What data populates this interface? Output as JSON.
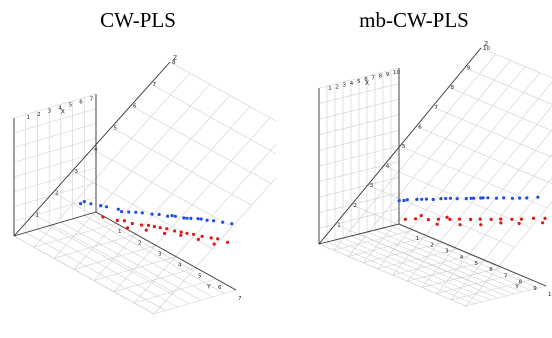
{
  "colors": {
    "blue": "#1f4fe0",
    "red": "#e0161a",
    "grid": "#cfcfcf",
    "axis": "#333333"
  },
  "chart_data": [
    {
      "type": "scatter",
      "title": "CW-PLS",
      "axes": {
        "x_label": "X",
        "y_label": "Y",
        "z_label": "Z",
        "y_ticks": [
          "1",
          "2",
          "3",
          "4",
          "5",
          "6",
          "7"
        ],
        "z_ticks": [
          "1",
          "2",
          "3",
          "4",
          "5",
          "6",
          "7",
          "8"
        ],
        "x_ticks": [
          "1",
          "2",
          "3",
          "4",
          "5",
          "6",
          "7"
        ]
      },
      "grid": true,
      "series": [
        {
          "color": "blue",
          "points": [
            [
              2,
              1,
              3.2
            ],
            [
              1.9,
              1.3,
              3.3
            ],
            [
              2.6,
              1.8,
              3.4
            ],
            [
              2.9,
              2.4,
              3.5
            ],
            [
              3.2,
              2.6,
              3.6
            ],
            [
              3.7,
              3.0,
              3.8
            ],
            [
              4.1,
              3.3,
              3.9
            ],
            [
              4.4,
              3.5,
              4.0
            ],
            [
              4.6,
              3.8,
              4.1
            ],
            [
              5.0,
              4.0,
              4.2
            ],
            [
              5.2,
              4.3,
              4.3
            ],
            [
              5.5,
              4.5,
              4.4
            ],
            [
              5.8,
              4.7,
              4.5
            ],
            [
              6.1,
              5.0,
              4.6
            ],
            [
              6.3,
              5.2,
              4.7
            ],
            [
              3.0,
              2.2,
              3.5
            ],
            [
              3.5,
              2.8,
              3.7
            ],
            [
              4.8,
              3.9,
              4.2
            ],
            [
              5.3,
              4.4,
              4.35
            ],
            [
              5.9,
              4.8,
              4.55
            ],
            [
              6.6,
              5.5,
              4.8
            ],
            [
              6.9,
              5.8,
              4.9
            ],
            [
              1.6,
              1.0,
              3.1
            ],
            [
              2.4,
              1.6,
              3.35
            ]
          ]
        },
        {
          "color": "red",
          "points": [
            [
              2.5,
              2.0,
              2.8
            ],
            [
              3.0,
              2.5,
              2.9
            ],
            [
              3.3,
              2.7,
              3.0
            ],
            [
              3.6,
              3.0,
              3.0
            ],
            [
              3.9,
              3.3,
              3.1
            ],
            [
              4.2,
              3.5,
              3.2
            ],
            [
              4.4,
              3.7,
              3.25
            ],
            [
              4.6,
              3.9,
              3.3
            ],
            [
              4.9,
              4.1,
              3.35
            ],
            [
              5.1,
              4.4,
              3.4
            ],
            [
              5.4,
              4.6,
              3.45
            ],
            [
              5.6,
              4.8,
              3.5
            ],
            [
              5.9,
              5.0,
              3.55
            ],
            [
              6.2,
              5.3,
              3.6
            ],
            [
              6.5,
              5.6,
              3.7
            ],
            [
              6.8,
              5.8,
              3.75
            ],
            [
              7.0,
              6.2,
              3.8
            ],
            [
              3.4,
              3.0,
              2.7
            ],
            [
              4.0,
              3.6,
              2.95
            ],
            [
              4.7,
              4.2,
              3.1
            ],
            [
              5.3,
              4.7,
              3.3
            ],
            [
              6.0,
              5.3,
              3.4
            ],
            [
              6.4,
              5.9,
              3.5
            ]
          ]
        }
      ]
    },
    {
      "type": "scatter",
      "title": "mb-CW-PLS",
      "axes": {
        "x_label": "X",
        "y_label": "Y",
        "z_label": "Z",
        "y_ticks": [
          "1",
          "2",
          "3",
          "4",
          "5",
          "6",
          "7",
          "8",
          "9",
          "10"
        ],
        "z_ticks": [
          "1",
          "2",
          "3",
          "4",
          "5",
          "6",
          "7",
          "8",
          "9",
          "10"
        ],
        "x_ticks": [
          "1",
          "2",
          "3",
          "4",
          "5",
          "6",
          "7",
          "8",
          "9",
          "10"
        ]
      },
      "grid": true,
      "series": [
        {
          "color": "blue",
          "points": [
            [
              2.5,
              1.8,
              4.4
            ],
            [
              2.9,
              2.1,
              4.6
            ],
            [
              3.3,
              2.5,
              4.8
            ],
            [
              3.7,
              2.9,
              5.0
            ],
            [
              4.0,
              3.2,
              5.1
            ],
            [
              4.3,
              3.5,
              5.3
            ],
            [
              4.7,
              3.9,
              5.5
            ],
            [
              5.0,
              4.2,
              5.6
            ],
            [
              5.3,
              4.6,
              5.8
            ],
            [
              5.6,
              4.9,
              5.95
            ],
            [
              5.9,
              5.2,
              6.1
            ],
            [
              6.2,
              5.5,
              6.25
            ],
            [
              6.5,
              5.9,
              6.4
            ],
            [
              6.8,
              6.2,
              6.55
            ],
            [
              7.1,
              6.6,
              6.7
            ],
            [
              7.4,
              6.9,
              6.85
            ],
            [
              7.7,
              7.2,
              7.0
            ],
            [
              2.7,
              2.0,
              4.5
            ],
            [
              3.5,
              2.7,
              4.9
            ],
            [
              4.5,
              3.7,
              5.4
            ],
            [
              5.5,
              4.8,
              5.9
            ],
            [
              6.0,
              5.3,
              6.15
            ],
            [
              7.9,
              7.7,
              7.3
            ]
          ]
        },
        {
          "color": "red",
          "points": [
            [
              3.0,
              2.8,
              3.3
            ],
            [
              3.5,
              3.2,
              3.5
            ],
            [
              4.0,
              3.8,
              3.7
            ],
            [
              4.5,
              4.2,
              3.9
            ],
            [
              5.0,
              4.7,
              4.1
            ],
            [
              5.4,
              5.1,
              4.3
            ],
            [
              5.8,
              5.6,
              4.5
            ],
            [
              6.2,
              6.0,
              4.7
            ],
            [
              6.6,
              6.5,
              4.9
            ],
            [
              7.0,
              6.9,
              5.1
            ],
            [
              7.4,
              7.4,
              5.3
            ],
            [
              7.8,
              7.8,
              5.5
            ],
            [
              8.2,
              8.3,
              5.8
            ],
            [
              8.7,
              8.8,
              6.0
            ],
            [
              9.1,
              9.3,
              6.2
            ],
            [
              9.6,
              9.8,
              6.6
            ],
            [
              4.2,
              4.4,
              3.6
            ],
            [
              5.2,
              5.4,
              4.0
            ],
            [
              6.0,
              6.3,
              4.4
            ],
            [
              6.8,
              7.1,
              4.9
            ],
            [
              7.6,
              7.9,
              5.2
            ],
            [
              8.5,
              8.9,
              5.7
            ],
            [
              3.8,
              3.3,
              3.8
            ],
            [
              4.8,
              4.5,
              4.2
            ]
          ]
        }
      ]
    }
  ]
}
